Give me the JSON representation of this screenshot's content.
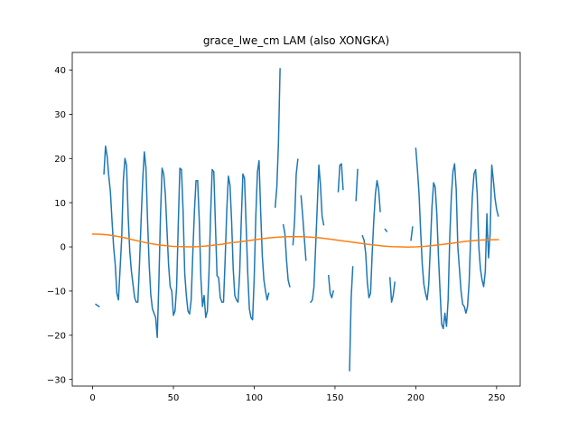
{
  "chart_data": {
    "type": "line",
    "title": "grace_lwe_cm LAM (also XONGKA)",
    "xlabel": "",
    "ylabel": "",
    "xlim": [
      -12.6,
      264.6
    ],
    "ylim": [
      -31.5,
      44
    ],
    "xticks": [
      0,
      50,
      100,
      150,
      200,
      250
    ],
    "yticks": [
      -30,
      -20,
      -10,
      0,
      10,
      20,
      30,
      40
    ],
    "grid": false,
    "colors": {
      "series_1": "#1f77b4",
      "series_2": "#ff7f0e"
    },
    "series": [
      {
        "values": [
          [
            2,
            -13
          ],
          [
            4,
            -13.5
          ],
          null,
          [
            7,
            16.5
          ],
          [
            8,
            22.8
          ],
          [
            9,
            20.5
          ],
          [
            10,
            16
          ],
          [
            11,
            12.5
          ],
          [
            12,
            6
          ],
          [
            13,
            0
          ],
          [
            14,
            -4
          ],
          [
            15,
            -10.5
          ],
          [
            16,
            -12
          ],
          [
            17,
            -5
          ],
          [
            18,
            2
          ],
          [
            19,
            15
          ],
          [
            20,
            20
          ],
          [
            21,
            18.5
          ],
          [
            22,
            7
          ],
          [
            23,
            -1
          ],
          [
            24,
            -5.5
          ],
          [
            25,
            -8.5
          ],
          [
            26,
            -11.5
          ],
          [
            27,
            -12.5
          ],
          [
            28,
            -12.5
          ],
          [
            29,
            -4
          ],
          [
            30,
            6
          ],
          [
            31,
            15
          ],
          [
            32,
            21.5
          ],
          [
            33,
            18
          ],
          [
            34,
            6
          ],
          [
            35,
            -4
          ],
          [
            36,
            -10.8
          ],
          [
            37,
            -14
          ],
          [
            38,
            -15
          ],
          [
            39,
            -16
          ],
          [
            40,
            -20.5
          ],
          [
            41,
            -8
          ],
          [
            42,
            7
          ],
          [
            43,
            17.8
          ],
          [
            44,
            16.5
          ],
          [
            45,
            12
          ],
          [
            46,
            4
          ],
          [
            47,
            -4
          ],
          [
            48,
            -9
          ],
          [
            49,
            -10
          ],
          [
            50,
            -15.5
          ],
          [
            51,
            -14.5
          ],
          [
            52,
            -9
          ],
          [
            53,
            5
          ],
          [
            54,
            17.8
          ],
          [
            55,
            17.5
          ],
          [
            56,
            8
          ],
          [
            57,
            -6
          ],
          [
            58,
            -11
          ],
          [
            59,
            -14.5
          ],
          [
            60,
            -15.2
          ],
          [
            61,
            -12
          ],
          [
            62,
            -1.5
          ],
          [
            63,
            8
          ],
          [
            64,
            15
          ],
          [
            65,
            15
          ],
          [
            66,
            6
          ],
          [
            67,
            -7
          ],
          [
            68,
            -13.5
          ],
          [
            69,
            -11
          ],
          [
            70,
            -16
          ],
          [
            71,
            -14.5
          ],
          [
            72,
            -6
          ],
          [
            73,
            7
          ],
          [
            74,
            17.5
          ],
          [
            75,
            17
          ],
          [
            76,
            5
          ],
          [
            77,
            -6.5
          ],
          [
            78,
            -7
          ],
          [
            79,
            -11.5
          ],
          [
            80,
            -12.5
          ],
          [
            81,
            -12.5
          ],
          [
            82,
            -3
          ],
          [
            83,
            8
          ],
          [
            84,
            16
          ],
          [
            85,
            14
          ],
          [
            86,
            6
          ],
          [
            87,
            -5
          ],
          [
            88,
            -11
          ],
          [
            89,
            -12
          ],
          [
            90,
            -12.5
          ],
          [
            91,
            -6
          ],
          [
            92,
            6
          ],
          [
            93,
            16.5
          ],
          [
            94,
            15.5
          ],
          [
            95,
            5
          ],
          [
            96,
            -6
          ],
          [
            97,
            -14
          ],
          [
            98,
            -16
          ],
          [
            99,
            -16.5
          ],
          [
            100,
            -7
          ],
          [
            101,
            7
          ],
          [
            102,
            17
          ],
          [
            103,
            19.5
          ],
          [
            104,
            8
          ],
          [
            105,
            -2
          ],
          [
            106,
            -7.5
          ],
          [
            107,
            -10
          ],
          [
            108,
            -12
          ],
          [
            109,
            -10.5
          ],
          null,
          [
            113,
            9
          ],
          [
            114,
            13.5
          ],
          [
            115,
            23.5
          ],
          [
            116,
            40.3
          ],
          null,
          [
            118,
            5
          ],
          [
            119,
            3
          ],
          [
            120,
            -3
          ],
          [
            121,
            -7.5
          ],
          [
            122,
            -9
          ],
          null,
          [
            124,
            0.5
          ],
          [
            125,
            6
          ],
          [
            126,
            16.5
          ],
          [
            127,
            19.8
          ],
          null,
          [
            129,
            11.5
          ],
          [
            130,
            7
          ],
          [
            131,
            2
          ],
          [
            132,
            -3
          ],
          null,
          [
            135,
            -12.5
          ],
          [
            136,
            -12
          ],
          [
            137,
            -9
          ],
          [
            138,
            0
          ],
          [
            139,
            9
          ],
          [
            140,
            18.5
          ],
          [
            141,
            14
          ],
          [
            142,
            7
          ],
          [
            143,
            5
          ],
          null,
          [
            146,
            -6.5
          ],
          [
            147,
            -10.5
          ],
          [
            148,
            -11.5
          ],
          [
            149,
            -10
          ],
          null,
          [
            152,
            12.5
          ],
          [
            153,
            18.5
          ],
          [
            154,
            18.8
          ],
          [
            155,
            13
          ],
          null,
          [
            159,
            -28
          ],
          [
            160,
            -11.5
          ],
          [
            161,
            -4.5
          ],
          null,
          [
            163,
            10.5
          ],
          [
            164,
            17.5
          ],
          null,
          [
            167,
            2.5
          ],
          [
            168,
            1.5
          ],
          [
            169,
            -1.5
          ],
          [
            170,
            -8
          ],
          [
            171,
            -11.5
          ],
          [
            172,
            -10.5
          ],
          [
            173,
            -1.5
          ],
          [
            174,
            6
          ],
          [
            175,
            12
          ],
          [
            176,
            15
          ],
          [
            177,
            13
          ],
          [
            178,
            8
          ],
          null,
          [
            181,
            4
          ],
          [
            182,
            3.5
          ],
          null,
          [
            184,
            -7
          ],
          [
            185,
            -12.5
          ],
          [
            186,
            -11
          ],
          [
            187,
            -8
          ],
          null,
          [
            197,
            1.5
          ],
          [
            198,
            4.5
          ],
          null,
          [
            200,
            22.3
          ],
          [
            201,
            17.5
          ],
          [
            202,
            12
          ],
          [
            203,
            3.5
          ],
          [
            204,
            -4
          ],
          [
            205,
            -8.5
          ],
          [
            206,
            -10.5
          ],
          [
            207,
            -12
          ],
          [
            208,
            -8.5
          ],
          [
            209,
            0
          ],
          [
            210,
            9
          ],
          [
            211,
            14.5
          ],
          [
            212,
            13.5
          ],
          [
            213,
            7.5
          ],
          [
            214,
            -2
          ],
          [
            215,
            -10
          ],
          [
            216,
            -17.5
          ],
          [
            217,
            -18.5
          ],
          [
            218,
            -15
          ],
          [
            219,
            -18
          ],
          [
            220,
            -12
          ],
          [
            221,
            2
          ],
          [
            222,
            11.5
          ],
          [
            223,
            17
          ],
          [
            224,
            18.8
          ],
          [
            225,
            13
          ],
          [
            226,
            0
          ],
          [
            227,
            -5
          ],
          [
            228,
            -10
          ],
          [
            229,
            -13
          ],
          [
            230,
            -13.5
          ],
          [
            231,
            -15
          ],
          [
            232,
            -13.5
          ],
          [
            233,
            -8
          ],
          [
            234,
            3
          ],
          [
            235,
            11.5
          ],
          [
            236,
            16.5
          ],
          [
            237,
            17.5
          ],
          [
            238,
            12
          ],
          [
            239,
            0
          ],
          [
            240,
            -5
          ],
          [
            241,
            -7.5
          ],
          [
            242,
            -9
          ],
          [
            243,
            -5.5
          ],
          [
            244,
            7.5
          ],
          [
            245,
            -2.5
          ],
          [
            246,
            3
          ],
          [
            247,
            18.5
          ],
          [
            248,
            15
          ],
          [
            249,
            11
          ],
          [
            250,
            8.5
          ],
          [
            251,
            7
          ]
        ]
      },
      {
        "values": [
          [
            0,
            2.9
          ],
          [
            5,
            2.85
          ],
          [
            10,
            2.7
          ],
          [
            15,
            2.4
          ],
          [
            20,
            2.05
          ],
          [
            25,
            1.6
          ],
          [
            30,
            1.2
          ],
          [
            35,
            0.8
          ],
          [
            40,
            0.5
          ],
          [
            45,
            0.3
          ],
          [
            50,
            0.1
          ],
          [
            55,
            0.05
          ],
          [
            60,
            0
          ],
          [
            65,
            0.05
          ],
          [
            70,
            0.2
          ],
          [
            75,
            0.4
          ],
          [
            80,
            0.6
          ],
          [
            85,
            0.9
          ],
          [
            90,
            1.1
          ],
          [
            95,
            1.35
          ],
          [
            100,
            1.6
          ],
          [
            105,
            1.85
          ],
          [
            110,
            2.05
          ],
          [
            115,
            2.2
          ],
          [
            120,
            2.3
          ],
          [
            125,
            2.3
          ],
          [
            130,
            2.3
          ],
          [
            135,
            2.2
          ],
          [
            140,
            2.05
          ],
          [
            145,
            1.85
          ],
          [
            150,
            1.6
          ],
          [
            155,
            1.35
          ],
          [
            160,
            1.1
          ],
          [
            165,
            0.85
          ],
          [
            170,
            0.6
          ],
          [
            175,
            0.4
          ],
          [
            180,
            0.2
          ],
          [
            185,
            0.05
          ],
          [
            190,
            0
          ],
          [
            195,
            -0.05
          ],
          [
            200,
            0
          ],
          [
            205,
            0.1
          ],
          [
            210,
            0.3
          ],
          [
            215,
            0.5
          ],
          [
            220,
            0.7
          ],
          [
            225,
            0.95
          ],
          [
            230,
            1.2
          ],
          [
            235,
            1.4
          ],
          [
            240,
            1.55
          ],
          [
            245,
            1.6
          ],
          [
            251,
            1.65
          ]
        ]
      }
    ]
  }
}
